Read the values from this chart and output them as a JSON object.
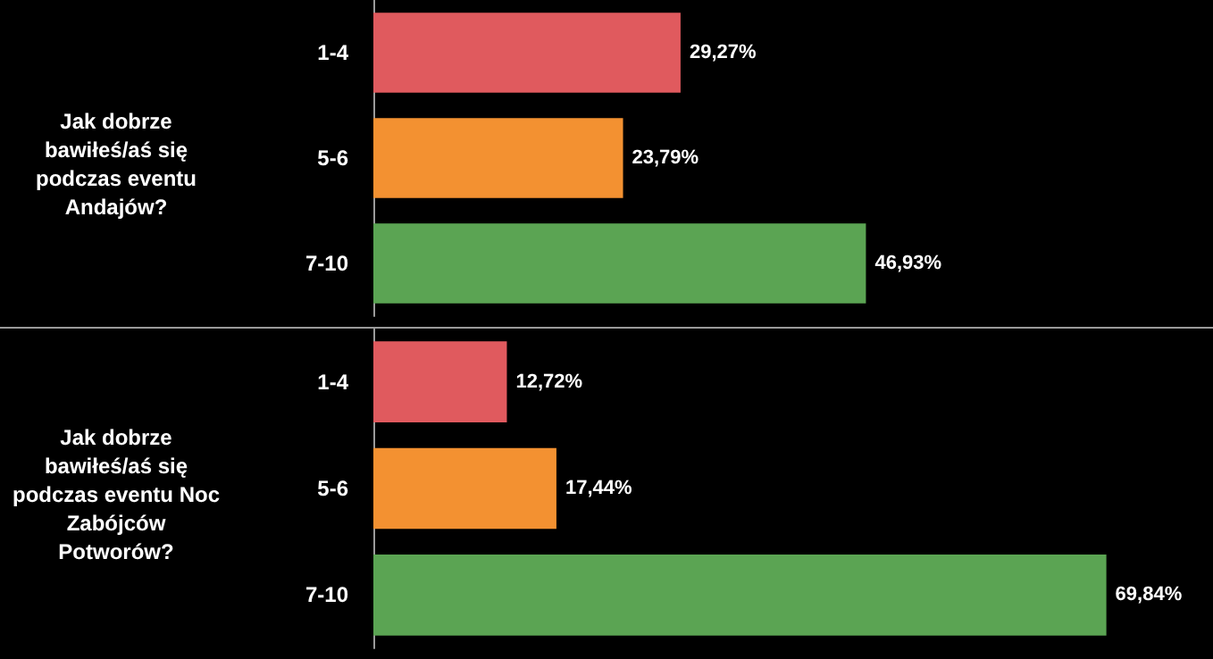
{
  "chart_data": [
    {
      "type": "bar",
      "orientation": "horizontal",
      "ylabel": "Jak dobrze bawiłeś/aś się podczas eventu Andajów?",
      "categories": [
        "1-4",
        "5-6",
        "7-10"
      ],
      "values": [
        29.27,
        23.79,
        46.93
      ],
      "colors": [
        "#e05a5e",
        "#f39131",
        "#5ba453"
      ],
      "value_labels": [
        "29,27%",
        "23,79%",
        "46,93%"
      ],
      "xlim": [
        0,
        80
      ],
      "tick_labels": "y",
      "grid": false
    },
    {
      "type": "bar",
      "orientation": "horizontal",
      "ylabel": "Jak dobrze bawiłeś/aś się podczas eventu Noc Zabójców Potworów?",
      "categories": [
        "1-4",
        "5-6",
        "7-10"
      ],
      "values": [
        12.72,
        17.44,
        69.84
      ],
      "colors": [
        "#e05a5e",
        "#f39131",
        "#5ba453"
      ],
      "value_labels": [
        "12,72%",
        "17,44%",
        "69,84%"
      ],
      "xlim": [
        0,
        80
      ],
      "tick_labels": "y",
      "grid": false
    }
  ]
}
